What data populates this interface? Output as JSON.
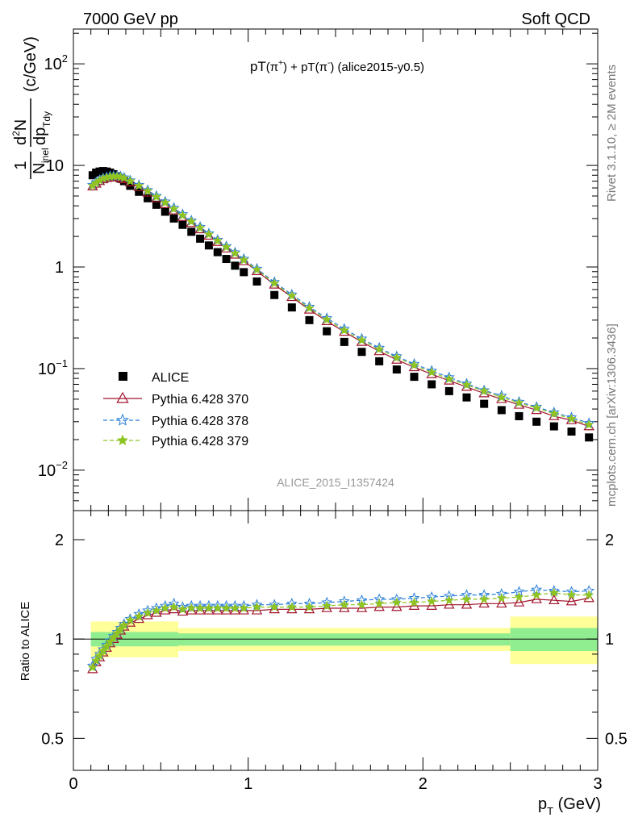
{
  "header": {
    "left": "7000 GeV pp",
    "right": "Soft QCD"
  },
  "side_labels": {
    "rivet": "Rivet 3.1.10, ≥ 2M events",
    "mcplots": "mcplots.cern.ch [arXiv:1306.3436]"
  },
  "analysis_id": "ALICE_2015_I1357424",
  "colors": {
    "alice": "#000000",
    "p370": "#a0142d",
    "p378": "#2a7fd8",
    "p379": "#8fc422",
    "band_inner": "#90ee90",
    "band_outer": "#ffff99"
  },
  "chart_data": [
    {
      "type": "scatter",
      "title": {
        "main": "pT",
        "sup1": "+",
        "mid": " + pT",
        "sup2": "-",
        "tail": " (alice2015-y0.5)"
      },
      "ylabel": {
        "frac1_num": "1",
        "frac1_den": "N",
        "frac1_den_sub": "inel",
        "frac2_num": "d",
        "frac2_num_sup": "2",
        "frac2_num_tail": "N",
        "frac2_den": "dp",
        "frac2_den_sub": "Tdy",
        "units": "(c/GeV)"
      },
      "xlim": [
        0,
        3
      ],
      "ylim": [
        0.004,
        220
      ],
      "yscale": "log",
      "y_ticks": [
        {
          "v": 100,
          "base": "10",
          "exp": "2"
        },
        {
          "v": 10,
          "base": "10",
          "exp": ""
        },
        {
          "v": 1,
          "base": "1",
          "exp": ""
        },
        {
          "v": 0.1,
          "base": "10",
          "exp": "−1"
        },
        {
          "v": 0.01,
          "base": "10",
          "exp": "−2"
        }
      ],
      "legend_position": "left",
      "x": [
        0.11,
        0.13,
        0.15,
        0.17,
        0.19,
        0.21,
        0.23,
        0.25,
        0.27,
        0.29,
        0.325,
        0.375,
        0.425,
        0.475,
        0.525,
        0.575,
        0.625,
        0.675,
        0.725,
        0.775,
        0.825,
        0.875,
        0.925,
        0.975,
        1.05,
        1.15,
        1.25,
        1.35,
        1.45,
        1.55,
        1.65,
        1.75,
        1.85,
        1.95,
        2.05,
        2.15,
        2.25,
        2.35,
        2.45,
        2.55,
        2.65,
        2.75,
        2.85,
        2.95
      ],
      "series": [
        {
          "name": "ALICE",
          "marker": "square",
          "values": [
            8.0,
            8.5,
            8.7,
            8.8,
            8.7,
            8.5,
            8.2,
            7.8,
            7.4,
            7.0,
            6.3,
            5.5,
            4.75,
            4.1,
            3.5,
            3.0,
            2.6,
            2.22,
            1.9,
            1.63,
            1.4,
            1.2,
            1.03,
            0.89,
            0.72,
            0.53,
            0.4,
            0.3,
            0.233,
            0.183,
            0.146,
            0.118,
            0.098,
            0.083,
            0.07,
            0.06,
            0.052,
            0.045,
            0.039,
            0.034,
            0.03,
            0.027,
            0.024,
            0.021
          ]
        },
        {
          "name": "Pythia 6.428 370",
          "marker": "open-triangle",
          "line": "solid",
          "values": [
            6.2,
            6.6,
            7.0,
            7.3,
            7.5,
            7.6,
            7.65,
            7.6,
            7.5,
            7.3,
            6.8,
            6.1,
            5.4,
            4.75,
            4.15,
            3.6,
            3.1,
            2.7,
            2.35,
            2.03,
            1.76,
            1.52,
            1.32,
            1.14,
            0.91,
            0.67,
            0.505,
            0.38,
            0.293,
            0.23,
            0.183,
            0.148,
            0.122,
            0.103,
            0.088,
            0.076,
            0.066,
            0.057,
            0.05,
            0.044,
            0.039,
            0.034,
            0.031,
            0.027
          ]
        },
        {
          "name": "Pythia 6.428 378",
          "marker": "open-star",
          "line": "dashed",
          "values": [
            6.4,
            6.8,
            7.2,
            7.5,
            7.7,
            7.85,
            7.9,
            7.9,
            7.8,
            7.6,
            7.1,
            6.4,
            5.7,
            5.0,
            4.4,
            3.82,
            3.3,
            2.86,
            2.48,
            2.14,
            1.85,
            1.6,
            1.39,
            1.2,
            0.96,
            0.71,
            0.535,
            0.405,
            0.313,
            0.246,
            0.197,
            0.16,
            0.132,
            0.111,
            0.095,
            0.082,
            0.071,
            0.061,
            0.054,
            0.047,
            0.042,
            0.037,
            0.033,
            0.029
          ]
        },
        {
          "name": "Pythia 6.428 379",
          "marker": "filled-star",
          "line": "dashed",
          "values": [
            6.3,
            6.7,
            7.1,
            7.4,
            7.6,
            7.75,
            7.8,
            7.78,
            7.68,
            7.5,
            7.0,
            6.3,
            5.6,
            4.9,
            4.3,
            3.73,
            3.22,
            2.8,
            2.42,
            2.09,
            1.81,
            1.57,
            1.36,
            1.17,
            0.94,
            0.69,
            0.52,
            0.393,
            0.303,
            0.238,
            0.19,
            0.155,
            0.128,
            0.108,
            0.092,
            0.079,
            0.069,
            0.06,
            0.052,
            0.046,
            0.041,
            0.036,
            0.032,
            0.028
          ]
        }
      ]
    },
    {
      "type": "scatter",
      "ylabel": "Ratio to ALICE",
      "xlabel": {
        "main": "p",
        "sub": "T",
        "tail": " (GeV)"
      },
      "xlim": [
        0,
        3
      ],
      "x_ticks": [
        0,
        1,
        2,
        3
      ],
      "ylim": [
        0.4,
        2.45
      ],
      "yscale": "log",
      "y_ticks": [
        {
          "v": 2,
          "label": "2"
        },
        {
          "v": 1,
          "label": "1"
        },
        {
          "v": 0.5,
          "label": "0.5"
        }
      ],
      "reference_line": 1,
      "bands": [
        {
          "x": [
            0.1,
            0.6
          ],
          "inner": [
            0.95,
            1.05
          ],
          "outer": [
            0.88,
            1.13
          ]
        },
        {
          "x": [
            0.6,
            2.5
          ],
          "inner": [
            0.955,
            1.04
          ],
          "outer": [
            0.92,
            1.08
          ]
        },
        {
          "x": [
            2.5,
            3.0
          ],
          "inner": [
            0.92,
            1.08
          ],
          "outer": [
            0.84,
            1.17
          ]
        }
      ],
      "x": [
        0.11,
        0.13,
        0.15,
        0.17,
        0.19,
        0.21,
        0.23,
        0.25,
        0.27,
        0.29,
        0.325,
        0.375,
        0.425,
        0.475,
        0.525,
        0.575,
        0.625,
        0.675,
        0.725,
        0.775,
        0.825,
        0.875,
        0.925,
        0.975,
        1.05,
        1.15,
        1.25,
        1.35,
        1.45,
        1.55,
        1.65,
        1.75,
        1.85,
        1.95,
        2.05,
        2.15,
        2.25,
        2.35,
        2.45,
        2.55,
        2.65,
        2.75,
        2.85,
        2.95
      ],
      "series": [
        {
          "name": "Pythia 6.428 370",
          "values": [
            0.81,
            0.85,
            0.88,
            0.91,
            0.94,
            0.97,
            1.0,
            1.03,
            1.06,
            1.09,
            1.12,
            1.15,
            1.18,
            1.2,
            1.22,
            1.23,
            1.21,
            1.22,
            1.22,
            1.22,
            1.22,
            1.22,
            1.22,
            1.22,
            1.22,
            1.23,
            1.23,
            1.23,
            1.24,
            1.24,
            1.24,
            1.25,
            1.25,
            1.26,
            1.26,
            1.27,
            1.27,
            1.28,
            1.28,
            1.29,
            1.32,
            1.31,
            1.3,
            1.33
          ]
        },
        {
          "name": "Pythia 6.428 378",
          "values": [
            0.83,
            0.87,
            0.9,
            0.93,
            0.96,
            0.99,
            1.02,
            1.05,
            1.08,
            1.11,
            1.15,
            1.19,
            1.22,
            1.24,
            1.26,
            1.28,
            1.25,
            1.26,
            1.26,
            1.26,
            1.26,
            1.26,
            1.26,
            1.26,
            1.27,
            1.27,
            1.28,
            1.28,
            1.29,
            1.3,
            1.31,
            1.32,
            1.32,
            1.33,
            1.34,
            1.35,
            1.36,
            1.36,
            1.37,
            1.39,
            1.41,
            1.4,
            1.39,
            1.4
          ]
        },
        {
          "name": "Pythia 6.428 379",
          "values": [
            0.82,
            0.86,
            0.89,
            0.92,
            0.95,
            0.98,
            1.01,
            1.04,
            1.07,
            1.1,
            1.14,
            1.17,
            1.2,
            1.22,
            1.24,
            1.25,
            1.23,
            1.24,
            1.24,
            1.24,
            1.24,
            1.24,
            1.24,
            1.24,
            1.25,
            1.25,
            1.25,
            1.25,
            1.26,
            1.27,
            1.27,
            1.28,
            1.29,
            1.29,
            1.3,
            1.31,
            1.32,
            1.32,
            1.33,
            1.34,
            1.36,
            1.38,
            1.36,
            1.36
          ]
        }
      ]
    }
  ]
}
